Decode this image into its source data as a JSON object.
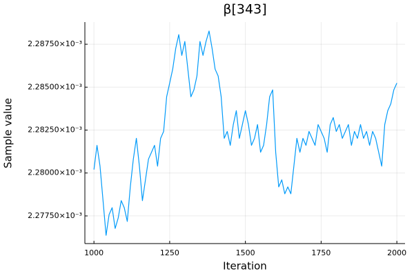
{
  "chart_data": {
    "type": "line",
    "title": "β[343]",
    "x_label": "Iteration",
    "y_label": "Sample value",
    "color": "#009af9",
    "grid": true,
    "xlim": [
      970,
      2027
    ],
    "xticks": [
      1000,
      1250,
      1500,
      1750,
      2000
    ],
    "ylim": [
      0.00227589,
      0.00228879
    ],
    "yticks": [
      {
        "value": 0.0022775,
        "label": "2.27750×10⁻³"
      },
      {
        "value": 0.00228,
        "label": "2.28000×10⁻³"
      },
      {
        "value": 0.0022825,
        "label": "2.28250×10⁻³"
      },
      {
        "value": 0.002285,
        "label": "2.28500×10⁻³"
      },
      {
        "value": 0.0022875,
        "label": "2.28750×10⁻³"
      }
    ],
    "x": [
      1000,
      1010,
      1020,
      1030,
      1040,
      1050,
      1060,
      1070,
      1080,
      1090,
      1100,
      1110,
      1120,
      1130,
      1140,
      1150,
      1160,
      1170,
      1180,
      1190,
      1200,
      1210,
      1220,
      1230,
      1240,
      1250,
      1260,
      1270,
      1280,
      1290,
      1300,
      1310,
      1320,
      1330,
      1340,
      1350,
      1360,
      1370,
      1380,
      1390,
      1400,
      1410,
      1420,
      1430,
      1440,
      1450,
      1460,
      1470,
      1480,
      1490,
      1500,
      1510,
      1520,
      1530,
      1540,
      1550,
      1560,
      1570,
      1580,
      1590,
      1600,
      1610,
      1620,
      1630,
      1640,
      1650,
      1660,
      1670,
      1680,
      1690,
      1700,
      1710,
      1720,
      1730,
      1740,
      1750,
      1760,
      1770,
      1780,
      1790,
      1800,
      1810,
      1820,
      1830,
      1840,
      1850,
      1860,
      1870,
      1880,
      1890,
      1900,
      1910,
      1920,
      1930,
      1940,
      1950,
      1960,
      1970,
      1980,
      1990,
      2000
    ],
    "values": [
      0.0022802,
      0.00228161,
      0.0022804,
      0.00227839,
      0.00227637,
      0.00227758,
      0.00227798,
      0.00227677,
      0.00227738,
      0.00227839,
      0.00227798,
      0.00227718,
      0.00227919,
      0.00228081,
      0.00228202,
      0.0022804,
      0.00227839,
      0.0022796,
      0.00228081,
      0.00228121,
      0.00228161,
      0.0022804,
      0.00228202,
      0.00228242,
      0.00228444,
      0.00228524,
      0.00228605,
      0.00228726,
      0.00228806,
      0.00228685,
      0.00228766,
      0.00228605,
      0.00228444,
      0.00228484,
      0.00228565,
      0.00228766,
      0.00228685,
      0.00228766,
      0.00228827,
      0.00228726,
      0.00228605,
      0.00228565,
      0.00228444,
      0.00228202,
      0.00228242,
      0.00228161,
      0.00228282,
      0.00228363,
      0.00228202,
      0.00228282,
      0.00228363,
      0.00228282,
      0.00228161,
      0.00228202,
      0.00228282,
      0.00228121,
      0.00228161,
      0.00228282,
      0.00228444,
      0.00228484,
      0.00228121,
      0.00227919,
      0.0022796,
      0.00227879,
      0.00227919,
      0.00227879,
      0.0022804,
      0.00228202,
      0.00228121,
      0.00228202,
      0.00228161,
      0.00228242,
      0.00228202,
      0.00228161,
      0.00228282,
      0.00228242,
      0.00228202,
      0.00228121,
      0.00228282,
      0.00228323,
      0.00228242,
      0.00228282,
      0.00228202,
      0.00228242,
      0.00228282,
      0.00228161,
      0.00228242,
      0.00228202,
      0.00228282,
      0.00228202,
      0.00228242,
      0.00228161,
      0.00228242,
      0.00228202,
      0.00228121,
      0.0022804,
      0.00228282,
      0.00228363,
      0.00228403,
      0.00228484,
      0.00228524
    ]
  }
}
